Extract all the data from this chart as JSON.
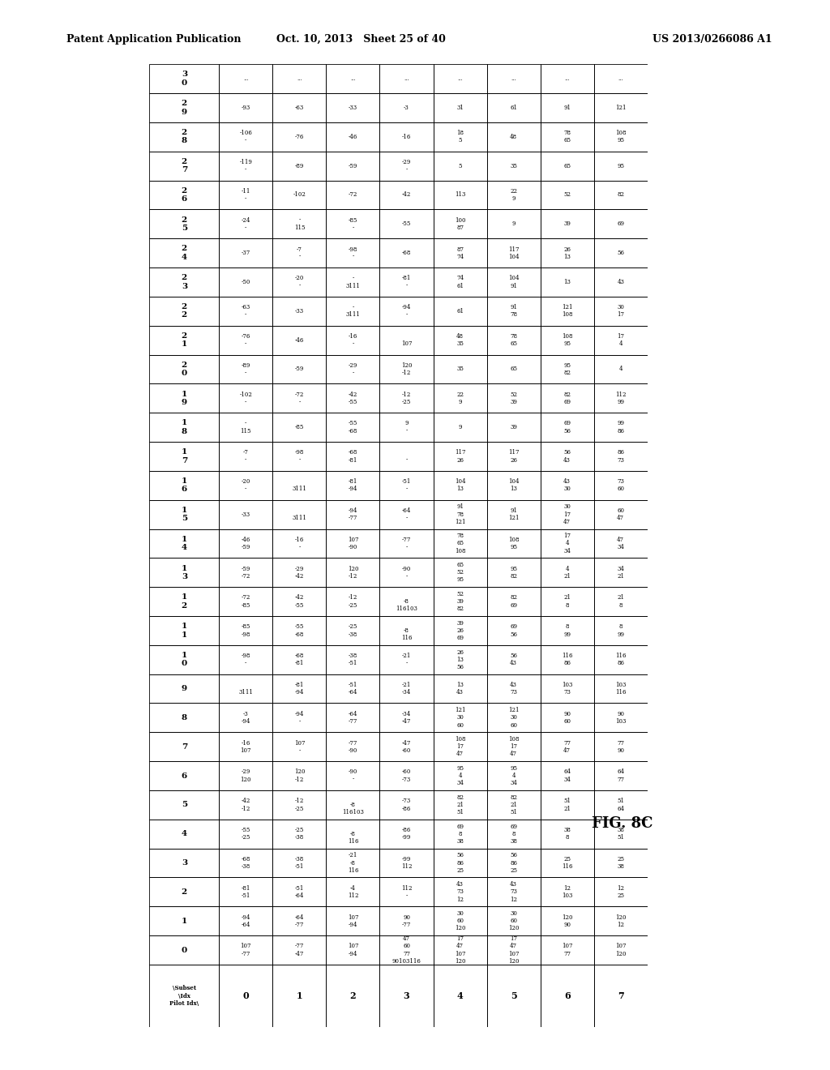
{
  "title_left": "Patent Application Publication",
  "title_center": "Oct. 10, 2013   Sheet 25 of 40",
  "title_right": "US 2013/0266086 A1",
  "fig_label": "FIG. 8C",
  "row_headers": [
    "3\n0",
    "2\n9",
    "2\n8",
    "2\n7",
    "2\n6",
    "2\n5",
    "2\n4",
    "2\n3",
    "2\n2",
    "2\n1",
    "2\n0",
    "1\n9",
    "1\n8",
    "1\n7",
    "1\n6",
    "1\n5",
    "1\n4",
    "1\n3",
    "1\n2",
    "1\n1",
    "1\n0",
    "9",
    "8",
    "7",
    "6",
    "5",
    "4",
    "3",
    "2",
    "1",
    "0",
    "\\Subset\n\\Idx\nPilot Idx\\"
  ],
  "col_headers": [
    "0",
    "1",
    "2",
    "3",
    "4",
    "5",
    "6",
    "7"
  ],
  "table_data": [
    [
      "...",
      "...",
      "...",
      "...",
      "...",
      "...",
      "...",
      "..."
    ],
    [
      "-93",
      "-63",
      "-33",
      "-3",
      "31",
      "61",
      "91",
      "121"
    ],
    [
      "-106\n-",
      "-76",
      "-46",
      "-16",
      "18\n5",
      "48",
      "78\n65",
      "108\n95"
    ],
    [
      "-119\n-",
      "-89",
      "-59",
      "-29\n-",
      "5",
      "35",
      "65",
      "95"
    ],
    [
      "-11\n-",
      "-102",
      "-72",
      "-42",
      "113",
      "22\n9",
      "52",
      "82"
    ],
    [
      "-24\n-",
      "-\n115",
      "-85\n-",
      "-55",
      "100\n87",
      "9",
      "39",
      "69"
    ],
    [
      "-37",
      "-7\n-",
      "-98\n-",
      "-68",
      "87\n74",
      "117\n104",
      "26\n13",
      "56"
    ],
    [
      "-50",
      "-20\n-",
      "-\n3111",
      "-81\n-",
      "74\n61",
      "104\n91",
      "13",
      "43"
    ],
    [
      "-63\n-",
      "-33",
      "-\n3111",
      "-94\n-",
      "61",
      "91\n78",
      "121\n108",
      "30\n17"
    ],
    [
      "-76\n-",
      "-46",
      "-16\n-",
      "\n107",
      "48\n35",
      "78\n65",
      "108\n95",
      "17\n4"
    ],
    [
      "-89\n-",
      "-59",
      "-29\n-",
      "120\n-12",
      "35",
      "65",
      "95\n82",
      "4"
    ],
    [
      "-102\n-",
      "-72\n-",
      "-42\n-55",
      "-12\n-25",
      "22\n9",
      "52\n39",
      "82\n69",
      "112\n99"
    ],
    [
      "-\n115",
      "-85",
      "-55\n-68",
      "9\n-",
      "9",
      "39",
      "69\n56",
      "99\n86"
    ],
    [
      "-7\n-",
      "-98\n-",
      "-68\n-81",
      "\n-",
      "117\n26",
      "117\n26",
      "56\n43",
      "86\n73"
    ],
    [
      "-20\n-",
      "\n3111",
      "-81\n-94",
      "-51\n-",
      "104\n13",
      "104\n13",
      "43\n30",
      "73\n60"
    ],
    [
      "-33",
      "\n3111",
      "-94\n-77",
      "-64\n-",
      "91\n78\n121",
      "91\n121",
      "30\n17\n47",
      "60\n47"
    ],
    [
      "-46\n-59",
      "-16\n-",
      "107\n-90",
      "-77\n-",
      "78\n65\n108",
      "108\n95",
      "17\n4\n34",
      "47\n34"
    ],
    [
      "-59\n-72",
      "-29\n-42",
      "120\n-12",
      "-90\n-",
      "65\n52\n95",
      "95\n82",
      "4\n21",
      "34\n21"
    ],
    [
      "-72\n-85",
      "-42\n-55",
      "-12\n-25",
      "\n-8\n116103",
      "52\n39\n82",
      "82\n69",
      "21\n8",
      "21\n8"
    ],
    [
      "-85\n-98",
      "-55\n-68",
      "-25\n-38",
      "\n-8\n116",
      "39\n26\n69",
      "69\n56",
      "8\n99",
      "8\n99"
    ],
    [
      "-98\n-",
      "-68\n-81",
      "-38\n-51",
      "-21\n-",
      "26\n13\n56",
      "56\n43",
      "116\n86",
      "116\n86"
    ],
    [
      "\n3111",
      "-81\n-94",
      "-51\n-64",
      "-21\n-34",
      "13\n43",
      "43\n73",
      "103\n73",
      "103\n116"
    ],
    [
      "-3\n-94",
      "-94\n-",
      "-64\n-77",
      "-34\n-47",
      "121\n30\n60",
      "121\n30\n60",
      "90\n60",
      "90\n103"
    ],
    [
      "-16\n107",
      "107\n-",
      "-77\n-90",
      "-47\n-60",
      "108\n17\n47",
      "108\n17\n47",
      "77\n47",
      "77\n90"
    ],
    [
      "-29\n120",
      "120\n-12",
      "-90\n-",
      "-60\n-73",
      "95\n4\n34",
      "95\n4\n34",
      "64\n34",
      "64\n77"
    ],
    [
      "-42\n-12",
      "-12\n-25",
      "\n-8\n116103",
      "-73\n-86",
      "82\n21\n51",
      "82\n21\n51",
      "51\n21",
      "51\n64"
    ],
    [
      "-55\n-25",
      "-25\n-38",
      "\n-8\n116",
      "-86\n-99",
      "69\n8\n38",
      "69\n8\n38",
      "38\n8",
      "38\n51"
    ],
    [
      "-68\n-38",
      "-38\n-51",
      "-21\n-8\n116",
      "-99\n112",
      "56\n86\n25",
      "56\n86\n25",
      "25\n116",
      "25\n38"
    ],
    [
      "-81\n-51",
      "-51\n-64",
      "-4\n112",
      "112\n-",
      "43\n73\n12",
      "43\n73\n12",
      "12\n103",
      "12\n25"
    ],
    [
      "-94\n-64",
      "-64\n-77",
      "107\n-94",
      "90\n-77",
      "30\n60\n120",
      "30\n60\n120",
      "120\n90",
      "120\n12"
    ],
    [
      "107\n-77",
      "-77\n-47",
      "107\n-94",
      "47\n60\n77\n90103116",
      "17\n47\n107\n120",
      "17\n47\n107\n120",
      "107\n77",
      "107\n120"
    ]
  ],
  "n_rows": 31,
  "n_cols": 8
}
